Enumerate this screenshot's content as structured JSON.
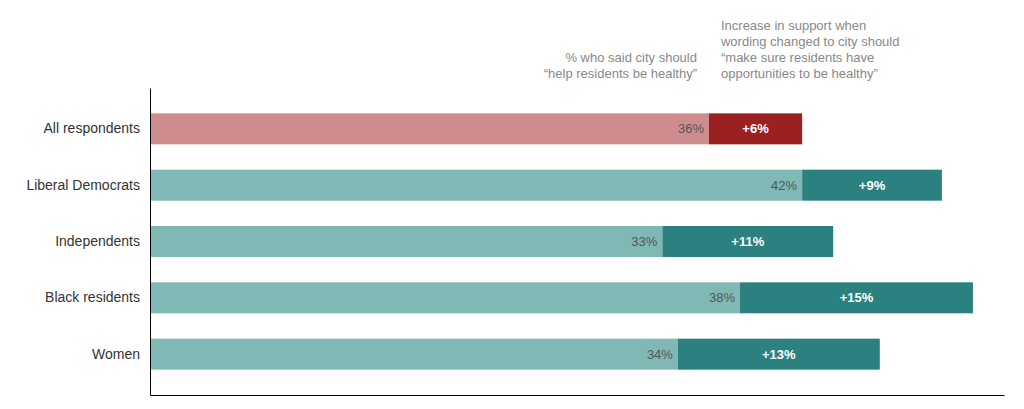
{
  "chart_data": {
    "type": "bar",
    "orientation": "horizontal",
    "stacked": true,
    "data_labels": true,
    "tick_labels": "y",
    "categories": [
      "All respondents",
      "Liberal Democrats",
      "Independents",
      "Black residents",
      "Women"
    ],
    "xlim": [
      0,
      55
    ],
    "annotations": [
      [
        "% who said city should",
        "“help residents be healthy”"
      ],
      [
        "Increase in support when",
        "wording changed to city should",
        "“make sure residents have",
        "opportunities to be healthy”"
      ]
    ],
    "series": [
      {
        "values": [
          36,
          42,
          33,
          38,
          34
        ],
        "value_labels": [
          "36%",
          "42%",
          "33%",
          "38%",
          "34%"
        ],
        "colors": [
          "#cf8c8e",
          "#7fb8b4",
          "#7fb8b4",
          "#7fb8b4",
          "#7fb8b4"
        ]
      },
      {
        "values": [
          6,
          9,
          11,
          15,
          13
        ],
        "value_labels": [
          "+6%",
          "+9%",
          "+11%",
          "+15%",
          "+13%"
        ],
        "colors": [
          "#9b2020",
          "#2b8080",
          "#2b8080",
          "#2b8080",
          "#2b8080"
        ]
      }
    ]
  }
}
